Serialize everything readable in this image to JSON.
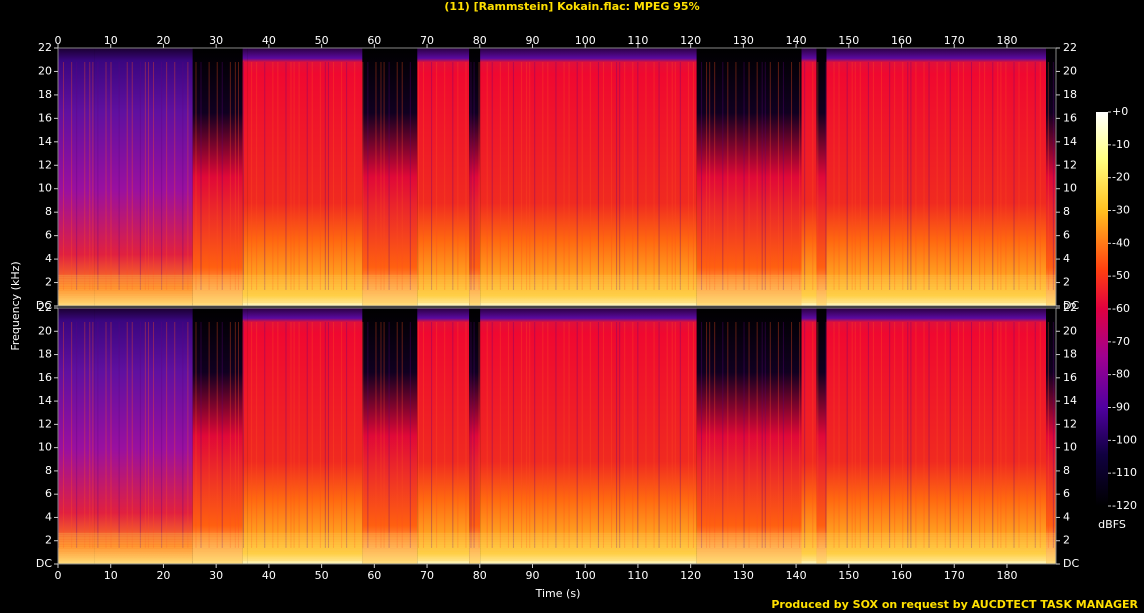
{
  "chart_data": {
    "type": "spectrogram",
    "title": "(11) [Rammstein] Kokain.flac: MPEG 95%",
    "xlabel": "Time (s)",
    "ylabel": "Frequency (kHz)",
    "xlim": [
      0,
      189.3
    ],
    "xticks": [
      0,
      10,
      20,
      30,
      40,
      50,
      60,
      70,
      80,
      90,
      100,
      110,
      120,
      130,
      140,
      150,
      160,
      170,
      180
    ],
    "ylim": [
      0,
      22
    ],
    "yticks": [
      {
        "value": 0,
        "label": "DC"
      },
      2,
      4,
      6,
      8,
      10,
      12,
      14,
      16,
      18,
      20,
      22
    ],
    "colorbar": {
      "label": "dBFS",
      "lim": [
        -120,
        0
      ],
      "ticks": [
        {
          "value": 0,
          "label": "+0"
        },
        -10,
        -20,
        -30,
        -40,
        -50,
        -60,
        -70,
        -80,
        -90,
        -100,
        -110,
        -120
      ]
    },
    "footer": "Produced by SOX on request by AUCDTECT TASK MANAGER"
  }
}
